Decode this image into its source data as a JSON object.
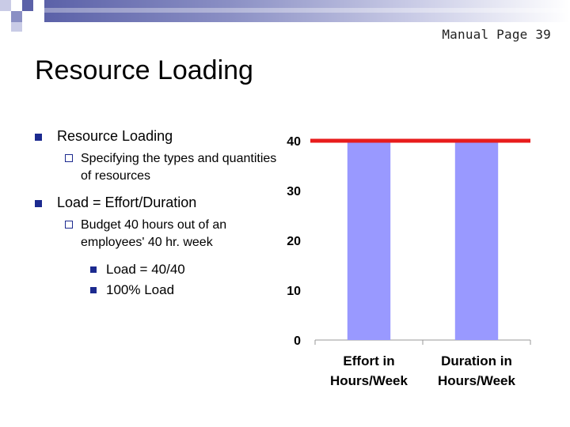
{
  "manual_ref": "Manual Page 39",
  "title": "Resource Loading",
  "bullets": [
    {
      "text": "Resource Loading",
      "sub": [
        {
          "text": "Specifying the types and quantities of resources"
        }
      ]
    },
    {
      "text": "Load = Effort/Duration",
      "sub": [
        {
          "text": "Budget 40 hours out of an employees' 40 hr. week",
          "items": [
            "Load = 40/40",
            "100% Load"
          ]
        }
      ]
    }
  ],
  "colors": {
    "bar": "#9999ff",
    "line": "#e81c1c",
    "bullet": "#1c2a8f"
  },
  "chart_data": {
    "type": "bar",
    "categories": [
      "Effort in Hours/Week",
      "Duration in Hours/Week"
    ],
    "category_lines": [
      [
        "Effort in",
        "Hours/Week"
      ],
      [
        "Duration in",
        "Hours/Week"
      ]
    ],
    "values": [
      40,
      40
    ],
    "reference_line": 40,
    "yticks": [
      "0",
      "10",
      "20",
      "30",
      "40"
    ],
    "ylim": [
      0,
      40
    ],
    "xlabel": "",
    "ylabel": "",
    "grid": false
  }
}
